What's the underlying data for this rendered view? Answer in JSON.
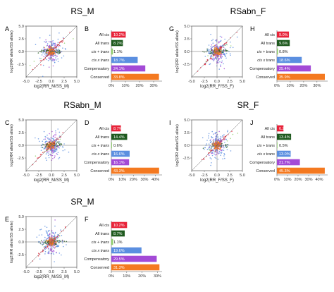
{
  "figure": {
    "section_titles": [
      "RS_M",
      "RSabn_F",
      "RSabn_M",
      "SR_F",
      "SR_M"
    ],
    "panel_letters": [
      "A",
      "B",
      "C",
      "D",
      "E",
      "F",
      "G",
      "H",
      "I",
      "J"
    ]
  },
  "chart_data": [
    {
      "panel": "A",
      "type": "scatter",
      "section": "RS_M",
      "xlabel": "log2(RR_M/SS_M)",
      "ylabel": "log2(RR allele/SS allele)",
      "xlim": [
        -5,
        5
      ],
      "ylim": [
        -5,
        5
      ],
      "xticks": [
        -5.0,
        -2.5,
        0.0,
        2.5,
        5.0
      ],
      "yticks": [
        -2.5,
        0.0,
        2.5,
        5.0
      ],
      "categories": [
        "Conserved",
        "Compensatory",
        "cis x trans",
        "cis + trans",
        "All trans",
        "All cis"
      ],
      "colors": {
        "Conserved": "#f47920",
        "Compensatory": "#a34ad6",
        "cis x trans": "#5b8fe0",
        "cis + trans": "#8fd06a",
        "All trans": "#1f5a1f",
        "All cis": "#e8243a"
      }
    },
    {
      "panel": "B",
      "type": "bar",
      "section": "RS_M",
      "categories": [
        "All cis",
        "All trans",
        "cis + trans",
        "cis x trans",
        "Compensatory",
        "Conserved"
      ],
      "values": [
        10.2,
        8.2,
        1.1,
        18.7,
        24.1,
        33.8
      ],
      "labels": [
        "10.2%",
        "8.2%",
        "1.1%",
        "18.7%",
        "24.1%",
        "33.8%"
      ],
      "xticks": [
        "0%",
        "10%",
        "20%",
        "30%"
      ],
      "xlim": [
        0,
        36
      ],
      "colors": [
        "#e8243a",
        "#1f5a1f",
        "#8fd06a",
        "#5b8fe0",
        "#a34ad6",
        "#f47920"
      ]
    },
    {
      "panel": "C",
      "type": "scatter",
      "section": "RSabn_M",
      "xlabel": "log2(RR_M/SS_M)",
      "ylabel": "log2(RR allele/SS allele)",
      "xlim": [
        -5,
        5
      ],
      "ylim": [
        -5,
        5
      ],
      "xticks": [
        -5.0,
        -2.5,
        0.0,
        2.5,
        5.0
      ],
      "yticks": [
        -2.5,
        0.0,
        2.5,
        5.0
      ]
    },
    {
      "panel": "D",
      "type": "bar",
      "section": "RSabn_M",
      "categories": [
        "All cis",
        "All trans",
        "cis + trans",
        "cis x trans",
        "Compensatory",
        "Conserved"
      ],
      "values": [
        8.7,
        14.4,
        0.6,
        16.6,
        16.1,
        43.3
      ],
      "labels": [
        "8.7%",
        "14.4%",
        "0.6%",
        "16.6%",
        "16.1%",
        "43.3%"
      ],
      "xticks": [
        "0%",
        "10%",
        "20%",
        "30%",
        "40%"
      ],
      "xlim": [
        0,
        46
      ],
      "colors": [
        "#e8243a",
        "#1f5a1f",
        "#8fd06a",
        "#5b8fe0",
        "#a34ad6",
        "#f47920"
      ]
    },
    {
      "panel": "E",
      "type": "scatter",
      "section": "SR_M",
      "xlabel": "log2(RR_M/SS_M)",
      "ylabel": "log2(RR allele/SS allele)",
      "xlim": [
        -5,
        5
      ],
      "ylim": [
        -5,
        5
      ],
      "xticks": [
        -5.0,
        -2.5,
        0.0,
        2.5,
        5.0
      ],
      "yticks": [
        -2.5,
        0.0,
        2.5,
        5.0
      ]
    },
    {
      "panel": "F",
      "type": "bar",
      "section": "SR_M",
      "categories": [
        "All cis",
        "All trans",
        "cis + trans",
        "cis x trans",
        "Compensatory",
        "Conserved"
      ],
      "values": [
        10.2,
        8.7,
        1.1,
        19.6,
        29.5,
        31.3
      ],
      "labels": [
        "10.2%",
        "8.7%",
        "1.1%",
        "19.6%",
        "29.5%",
        "31.3%"
      ],
      "xticks": [
        "0%",
        "10%",
        "20%",
        "30%"
      ],
      "xlim": [
        0,
        33
      ],
      "colors": [
        "#e8243a",
        "#1f5a1f",
        "#8fd06a",
        "#5b8fe0",
        "#a34ad6",
        "#f47920"
      ]
    },
    {
      "panel": "G",
      "type": "scatter",
      "section": "RSabn_F",
      "xlabel": "log2(RR_F/SS_F)",
      "ylabel": "log2(RR allele/SS allele)",
      "xlim": [
        -5,
        5
      ],
      "ylim": [
        -5,
        5
      ],
      "xticks": [
        -5.0,
        -2.5,
        0.0,
        2.5,
        5.0
      ],
      "yticks": [
        -2.5,
        0.0,
        2.5,
        5.0
      ]
    },
    {
      "panel": "H",
      "type": "bar",
      "section": "RSabn_F",
      "categories": [
        "All cis",
        "All trans",
        "cis + trans",
        "cis x trans",
        "Compensatory",
        "Conserved"
      ],
      "values": [
        9.0,
        9.6,
        0.8,
        18.6,
        25.4,
        35.9
      ],
      "labels": [
        "9.0%",
        "9.6%",
        "0.8%",
        "18.6%",
        "25.4%",
        "35.9%"
      ],
      "xticks": [
        "0%",
        "10%",
        "20%",
        "30%"
      ],
      "xlim": [
        0,
        38
      ],
      "colors": [
        "#e8243a",
        "#1f5a1f",
        "#8fd06a",
        "#5b8fe0",
        "#a34ad6",
        "#f47920"
      ]
    },
    {
      "panel": "I",
      "type": "scatter",
      "section": "SR_F",
      "xlabel": "log2(RR_F/SS_F)",
      "ylabel": "log2(RR allele/SS allele)",
      "xlim": [
        -5,
        5
      ],
      "ylim": [
        -5,
        5
      ],
      "xticks": [
        -5.0,
        -2.5,
        0.0,
        2.5,
        5.0
      ],
      "yticks": [
        -2.5,
        0.0,
        2.5,
        5.0
      ]
    },
    {
      "panel": "J",
      "type": "bar",
      "section": "SR_F",
      "categories": [
        "All cis",
        "All trans",
        "cis + trans",
        "cis x trans",
        "Compensatory",
        "Conserved"
      ],
      "values": [
        6.2,
        13.4,
        0.5,
        13.0,
        21.7,
        45.3
      ],
      "labels": [
        "6.2%",
        "13.4%",
        "0.5%",
        "13.0%",
        "21.7%",
        "45.3%"
      ],
      "xticks": [
        "0%",
        "10%",
        "20%",
        "30%",
        "40%"
      ],
      "xlim": [
        0,
        48
      ],
      "colors": [
        "#e8243a",
        "#1f5a1f",
        "#8fd06a",
        "#5b8fe0",
        "#a34ad6",
        "#f47920"
      ]
    }
  ]
}
